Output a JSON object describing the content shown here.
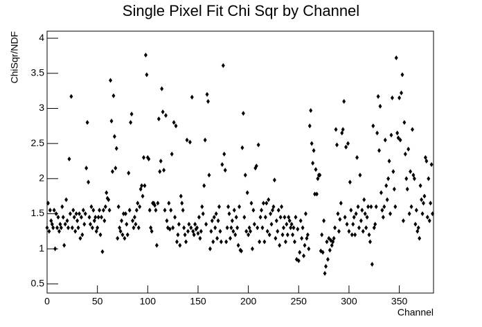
{
  "chart_data": {
    "type": "scatter",
    "title": "Single Pixel Fit Chi Sqr by Channel",
    "x_label": "Channel",
    "y_label": "ChiSqr/NDF",
    "color": "#000000",
    "xlim": [
      0,
      384
    ],
    "ylim": [
      0.37,
      4.1
    ],
    "xticks": [
      0,
      50,
      100,
      150,
      200,
      250,
      300,
      350
    ],
    "yticks": [
      0.5,
      1,
      1.5,
      2,
      2.5,
      3,
      3.5,
      4
    ],
    "x": [
      0,
      1,
      2,
      3,
      4,
      5,
      6,
      7,
      8,
      9,
      10,
      11,
      12,
      13,
      14,
      15,
      16,
      17,
      18,
      19,
      20,
      21,
      22,
      23,
      24,
      25,
      26,
      27,
      28,
      29,
      30,
      31,
      32,
      33,
      34,
      35,
      36,
      37,
      38,
      39,
      40,
      41,
      42,
      43,
      44,
      45,
      46,
      47,
      48,
      49,
      50,
      51,
      52,
      53,
      54,
      55,
      56,
      57,
      58,
      59,
      60,
      61,
      62,
      63,
      64,
      65,
      66,
      67,
      68,
      69,
      70,
      71,
      72,
      73,
      74,
      75,
      76,
      77,
      78,
      79,
      80,
      81,
      82,
      83,
      84,
      85,
      86,
      87,
      88,
      89,
      90,
      91,
      92,
      93,
      94,
      95,
      96,
      97,
      98,
      99,
      100,
      101,
      102,
      103,
      104,
      105,
      106,
      107,
      108,
      109,
      110,
      111,
      112,
      113,
      114,
      115,
      116,
      117,
      118,
      119,
      120,
      121,
      122,
      123,
      124,
      125,
      126,
      127,
      128,
      129,
      130,
      131,
      132,
      133,
      134,
      135,
      136,
      137,
      138,
      139,
      140,
      141,
      142,
      143,
      144,
      145,
      146,
      147,
      148,
      149,
      150,
      151,
      152,
      153,
      154,
      155,
      156,
      157,
      158,
      159,
      160,
      161,
      162,
      163,
      164,
      165,
      166,
      167,
      168,
      169,
      170,
      171,
      172,
      173,
      174,
      175,
      176,
      177,
      178,
      179,
      180,
      181,
      182,
      183,
      184,
      185,
      186,
      187,
      188,
      189,
      190,
      191,
      192,
      193,
      194,
      195,
      196,
      197,
      198,
      199,
      200,
      201,
      202,
      203,
      204,
      205,
      206,
      207,
      208,
      209,
      210,
      211,
      212,
      213,
      214,
      215,
      216,
      217,
      218,
      219,
      220,
      221,
      222,
      223,
      224,
      225,
      226,
      227,
      228,
      229,
      230,
      231,
      232,
      233,
      234,
      235,
      236,
      237,
      238,
      239,
      240,
      241,
      242,
      243,
      244,
      245,
      246,
      247,
      248,
      249,
      250,
      251,
      252,
      253,
      254,
      255,
      256,
      257,
      258,
      259,
      260,
      261,
      262,
      263,
      264,
      265,
      266,
      267,
      268,
      269,
      270,
      271,
      272,
      273,
      274,
      275,
      276,
      277,
      278,
      279,
      280,
      281,
      282,
      283,
      284,
      285,
      286,
      287,
      288,
      289,
      290,
      291,
      292,
      293,
      294,
      295,
      296,
      297,
      298,
      299,
      300,
      301,
      302,
      303,
      304,
      305,
      306,
      307,
      308,
      309,
      310,
      311,
      312,
      313,
      314,
      315,
      316,
      317,
      318,
      319,
      320,
      321,
      322,
      323,
      324,
      325,
      326,
      327,
      328,
      329,
      330,
      331,
      332,
      333,
      334,
      335,
      336,
      337,
      338,
      339,
      340,
      341,
      342,
      343,
      344,
      345,
      346,
      347,
      348,
      349,
      350,
      351,
      352,
      353,
      354,
      355,
      356,
      357,
      358,
      359,
      360,
      361,
      362,
      363,
      364,
      365,
      366,
      367,
      368,
      369,
      370,
      371,
      372,
      373,
      374,
      375,
      376,
      377,
      378,
      379,
      380,
      381,
      382,
      383
    ],
    "values": [
      1.3,
      1.65,
      1.25,
      1.55,
      1.4,
      1.35,
      1.3,
      1.55,
      1.0,
      1.5,
      1.3,
      1.45,
      1.25,
      1.35,
      1.3,
      1.6,
      1.45,
      1.05,
      1.35,
      1.7,
      1.4,
      1.3,
      2.28,
      1.5,
      3.17,
      1.3,
      1.55,
      1.45,
      1.25,
      1.5,
      1.4,
      1.3,
      1.5,
      1.15,
      1.45,
      1.2,
      1.55,
      1.35,
      1.5,
      2.15,
      2.8,
      1.95,
      1.45,
      1.35,
      1.6,
      1.3,
      1.55,
      1.4,
      1.45,
      1.25,
      1.3,
      1.45,
      1.55,
      1.2,
      1.45,
      0.96,
      1.55,
      1.4,
      1.6,
      1.8,
      1.72,
      1.7,
      1.55,
      3.4,
      2.82,
      2.1,
      3.18,
      2.6,
      2.15,
      2.43,
      1.15,
      1.6,
      1.3,
      1.25,
      1.4,
      1.2,
      1.5,
      1.15,
      1.5,
      1.35,
      1.2,
      2.08,
      1.55,
      2.8,
      2.92,
      1.4,
      1.3,
      1.45,
      1.35,
      1.55,
      1.65,
      1.3,
      1.6,
      1.85,
      1.9,
      1.75,
      2.3,
      1.9,
      3.76,
      3.48,
      2.3,
      2.28,
      1.55,
      1.3,
      1.25,
      1.65,
      1.65,
      1.62,
      1.55,
      1.05,
      1.65,
      2.85,
      2.1,
      2.25,
      3.28,
      2.95,
      2.12,
      1.55,
      2.9,
      1.4,
      1.3,
      1.65,
      1.28,
      1.55,
      2.35,
      1.3,
      2.8,
      1.45,
      2.75,
      1.1,
      1.2,
      1.35,
      1.05,
      1.75,
      1.65,
      1.55,
      1.3,
      1.2,
      1.1,
      2.55,
      1.25,
      1.35,
      2.52,
      1.3,
      3.16,
      1.25,
      1.2,
      1.35,
      1.28,
      1.3,
      1.22,
      1.45,
      1.15,
      1.25,
      1.6,
      1.5,
      1.9,
      2.55,
      1.35,
      3.2,
      3.1,
      2.05,
      1.0,
      1.25,
      1.4,
      1.1,
      1.45,
      1.3,
      1.5,
      1.15,
      1.4,
      1.6,
      1.25,
      1.1,
      2.2,
      3.61,
      2.35,
      2.12,
      1.1,
      1.3,
      1.6,
      1.5,
      1.15,
      1.3,
      1.4,
      1.25,
      1.55,
      1.2,
      1.45,
      1.3,
      1.05,
      1.6,
      0.98,
      0.97,
      2.44,
      2.93,
      1.45,
      2.05,
      1.25,
      1.8,
      1.2,
      1.3,
      1.25,
      1.65,
      1.0,
      1.55,
      1.35,
      2.15,
      2.18,
      1.3,
      2.48,
      1.1,
      1.45,
      1.55,
      1.3,
      1.65,
      1.1,
      1.45,
      1.65,
      1.25,
      1.7,
      1.2,
      1.5,
      1.35,
      1.55,
      1.6,
      1.98,
      1.15,
      1.4,
      1.25,
      1.55,
      1.05,
      1.45,
      1.6,
      1.2,
      1.3,
      1.45,
      1.1,
      1.35,
      1.2,
      1.45,
      1.4,
      1.3,
      1.35,
      1.2,
      1.3,
      1.1,
      1.45,
      0.85,
      1.28,
      0.83,
      0.95,
      1.4,
      1.15,
      1.3,
      0.9,
      1.05,
      1.5,
      1.15,
      1.2,
      1.0,
      2.75,
      2.97,
      2.5,
      2.22,
      2.4,
      1.78,
      2.13,
      1.78,
      2.0,
      2.05,
      2.05,
      0.97,
      1.2,
      0.95,
      1.4,
      0.65,
      0.75,
      1.1,
      0.85,
      1.15,
      0.98,
      1.12,
      1.05,
      1.1,
      1.15,
      1.3,
      2.7,
      2.48,
      1.5,
      1.25,
      1.42,
      1.65,
      2.65,
      2.7,
      3.1,
      1.45,
      2.45,
      1.35,
      2.5,
      1.25,
      1.95,
      1.55,
      1.2,
      1.35,
      1.45,
      1.2,
      1.5,
      2.3,
      1.6,
      1.3,
      2.05,
      1.4,
      1.55,
      1.25,
      1.7,
      1.5,
      1.3,
      1.45,
      1.6,
      1.2,
      1.1,
      1.6,
      0.78,
      2.75,
      1.3,
      1.35,
      1.6,
      2.65,
      3.17,
      2.4,
      3.03,
      1.8,
      1.55,
      1.45,
      1.6,
      2.55,
      1.9,
      1.7,
      2.0,
      2.25,
      1.5,
      2.62,
      3.15,
      2.1,
      1.85,
      1.6,
      3.72,
      2.65,
      2.58,
      3.15,
      2.55,
      3.22,
      3.48,
      1.4,
      2.8,
      2.35,
      2.0,
      1.85,
      2.42,
      1.5,
      2.1,
      1.6,
      2.7,
      2.05,
      2.0,
      1.35,
      1.55,
      1.25,
      1.3,
      1.15,
      1.9,
      1.7,
      1.5,
      1.65,
      1.75,
      2.3,
      2.25,
      1.45,
      2.0,
      1.4,
      1.65,
      2.2,
      1.5
    ]
  }
}
